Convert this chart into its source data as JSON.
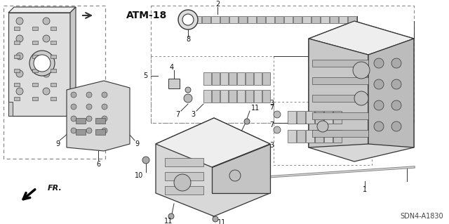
{
  "bg_color": "#ffffff",
  "diagram_code": "SDN4-A1830",
  "atm_ref": "ATM-18",
  "fr_label": "FR.",
  "line_color": "#333333",
  "part_fill": "#e8e8e8",
  "part_fill_dark": "#cccccc",
  "part_fill_darker": "#aaaaaa",
  "label_fontsize": 7,
  "figw": 6.4,
  "figh": 3.19,
  "dpi": 100
}
